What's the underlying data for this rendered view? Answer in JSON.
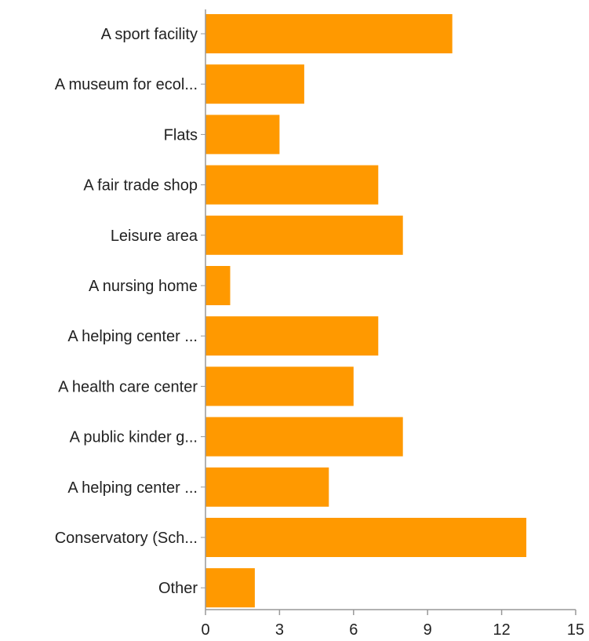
{
  "chart_data": {
    "type": "bar",
    "orientation": "horizontal",
    "categories": [
      "A sport facility",
      "A museum for ecol...",
      "Flats",
      "A fair trade shop",
      "Leisure area",
      "A nursing home",
      "A helping center ...",
      "A health care center",
      "A public kinder g...",
      "A helping center ...",
      "Conservatory (Sch...",
      "Other"
    ],
    "values": [
      10,
      4,
      3,
      7,
      8,
      1,
      7,
      6,
      8,
      5,
      13,
      2
    ],
    "xticks": [
      "0",
      "3",
      "6",
      "9",
      "12",
      "15"
    ],
    "xlim": [
      0,
      15
    ],
    "grid": false,
    "colors": {
      "bar": "#ff9900",
      "axis": "#999999"
    }
  }
}
